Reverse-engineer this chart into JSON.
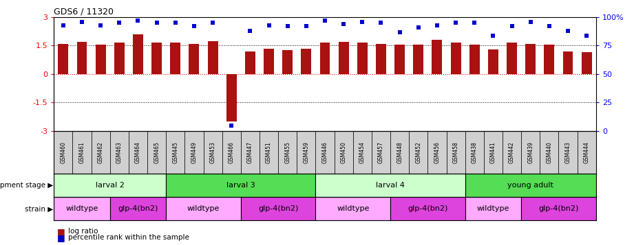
{
  "title": "GDS6 / 11320",
  "samples": [
    "GSM460",
    "GSM461",
    "GSM462",
    "GSM463",
    "GSM464",
    "GSM465",
    "GSM445",
    "GSM449",
    "GSM453",
    "GSM466",
    "GSM447",
    "GSM451",
    "GSM455",
    "GSM459",
    "GSM446",
    "GSM450",
    "GSM454",
    "GSM457",
    "GSM448",
    "GSM452",
    "GSM456",
    "GSM458",
    "GSM438",
    "GSM441",
    "GSM442",
    "GSM439",
    "GSM440",
    "GSM443",
    "GSM444"
  ],
  "log_ratio": [
    1.6,
    1.7,
    1.55,
    1.65,
    2.1,
    1.65,
    1.65,
    1.6,
    1.75,
    -2.5,
    1.2,
    1.35,
    1.25,
    1.35,
    1.65,
    1.7,
    1.65,
    1.6,
    1.55,
    1.55,
    1.8,
    1.65,
    1.55,
    1.3,
    1.65,
    1.6,
    1.55,
    1.2,
    1.15
  ],
  "percentile": [
    93,
    96,
    93,
    95,
    97,
    95,
    95,
    92,
    95,
    5,
    88,
    93,
    92,
    92,
    97,
    94,
    96,
    95,
    87,
    91,
    93,
    95,
    95,
    84,
    92,
    96,
    92,
    88,
    84
  ],
  "bar_color": "#aa1111",
  "percentile_color": "#0000cc",
  "dev_stage_groups": [
    {
      "label": "larval 2",
      "start": 0,
      "end": 5,
      "color": "#ccffcc"
    },
    {
      "label": "larval 3",
      "start": 6,
      "end": 13,
      "color": "#55dd55"
    },
    {
      "label": "larval 4",
      "start": 14,
      "end": 21,
      "color": "#ccffcc"
    },
    {
      "label": "young adult",
      "start": 22,
      "end": 28,
      "color": "#55dd55"
    }
  ],
  "strain_groups": [
    {
      "label": "wildtype",
      "start": 0,
      "end": 2,
      "color": "#ffaaff"
    },
    {
      "label": "glp-4(bn2)",
      "start": 3,
      "end": 5,
      "color": "#dd44dd"
    },
    {
      "label": "wildtype",
      "start": 6,
      "end": 9,
      "color": "#ffaaff"
    },
    {
      "label": "glp-4(bn2)",
      "start": 10,
      "end": 13,
      "color": "#dd44dd"
    },
    {
      "label": "wildtype",
      "start": 14,
      "end": 17,
      "color": "#ffaaff"
    },
    {
      "label": "glp-4(bn2)",
      "start": 18,
      "end": 21,
      "color": "#dd44dd"
    },
    {
      "label": "wildtype",
      "start": 22,
      "end": 24,
      "color": "#ffaaff"
    },
    {
      "label": "glp-4(bn2)",
      "start": 25,
      "end": 28,
      "color": "#dd44dd"
    }
  ],
  "ylim": [
    -3,
    3
  ],
  "yticks_left": [
    -3,
    -1.5,
    0,
    1.5,
    3
  ],
  "yticks_right": [
    0,
    25,
    50,
    75,
    100
  ]
}
